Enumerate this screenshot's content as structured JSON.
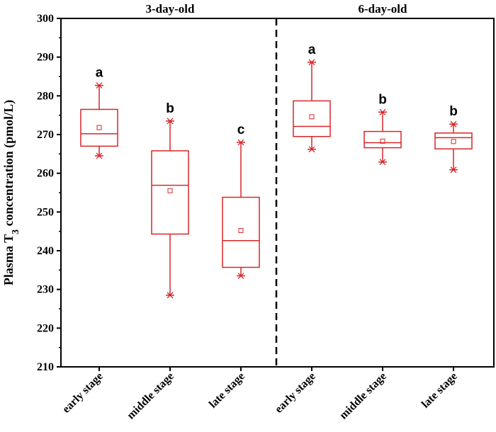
{
  "chart_data": {
    "type": "box",
    "ylabel": {
      "prefix": "Plasma T",
      "sub": "3",
      "suffix": " concentration (pmol/L)"
    },
    "ylim": [
      210,
      300
    ],
    "yticks": [
      210,
      220,
      230,
      240,
      250,
      260,
      270,
      280,
      290,
      300
    ],
    "groups": [
      {
        "name": "3-day-old",
        "categories": [
          0,
          1,
          2
        ]
      },
      {
        "name": "6-day-old",
        "categories": [
          3,
          4,
          5
        ]
      }
    ],
    "categories": [
      "early stage",
      "middle stage",
      "late stage",
      "early stage",
      "middle stage",
      "late stage"
    ],
    "boxes": [
      {
        "min": 264.5,
        "q1": 267.0,
        "median": 270.2,
        "q3": 276.5,
        "max": 282.7,
        "mean": 271.8,
        "label": "a"
      },
      {
        "min": 228.5,
        "q1": 244.3,
        "median": 256.9,
        "q3": 265.8,
        "max": 273.5,
        "mean": 255.5,
        "label": "b"
      },
      {
        "min": 233.5,
        "q1": 235.7,
        "median": 242.6,
        "q3": 253.8,
        "max": 268.0,
        "mean": 245.2,
        "label": "c"
      },
      {
        "min": 266.2,
        "q1": 269.5,
        "median": 272.1,
        "q3": 278.7,
        "max": 288.7,
        "mean": 274.6,
        "label": "a"
      },
      {
        "min": 262.9,
        "q1": 266.6,
        "median": 267.9,
        "q3": 270.8,
        "max": 275.8,
        "mean": 268.3,
        "label": "b"
      },
      {
        "min": 260.9,
        "q1": 266.3,
        "median": 269.2,
        "q3": 270.4,
        "max": 272.7,
        "mean": 268.2,
        "label": "b"
      }
    ],
    "colors": {
      "box": "#d62728",
      "axis": "#000000"
    }
  }
}
